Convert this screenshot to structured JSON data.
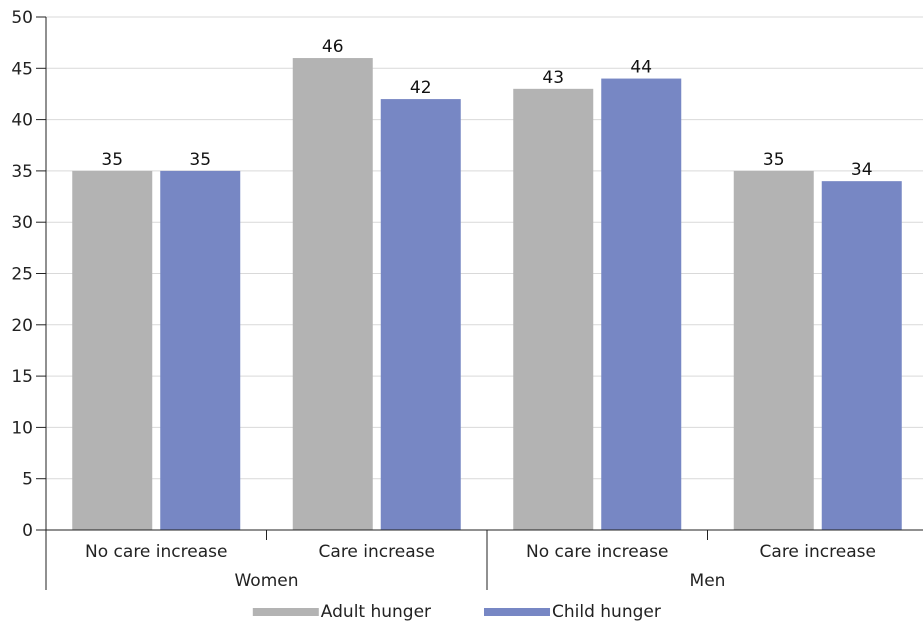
{
  "chart_data": {
    "type": "bar",
    "groups": [
      {
        "name": "Women",
        "categories": [
          "No care increase",
          "Care increase"
        ]
      },
      {
        "name": "Men",
        "categories": [
          "No care increase",
          "Care increase"
        ]
      }
    ],
    "series": [
      {
        "name": "Adult hunger",
        "color": "#b3b3b3",
        "values": [
          35,
          46,
          43,
          35
        ]
      },
      {
        "name": "Child hunger",
        "color": "#7787c4",
        "values": [
          35,
          42,
          44,
          34
        ]
      }
    ],
    "ylim": [
      0,
      50
    ],
    "yticks": [
      0,
      5,
      10,
      15,
      20,
      25,
      30,
      35,
      40,
      45,
      50
    ],
    "grid": true,
    "legend_position": "bottom"
  }
}
